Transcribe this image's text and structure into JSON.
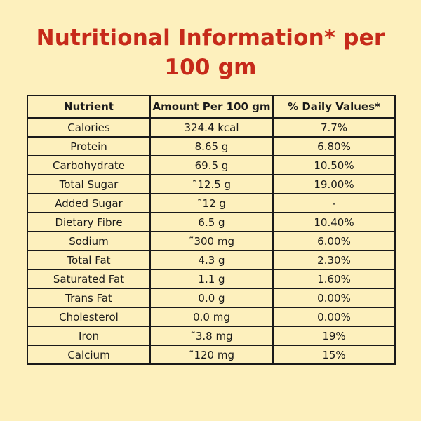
{
  "title": "Nutritional Information* per 100 gm",
  "table": {
    "headers": [
      "Nutrient",
      "Amount Per 100 gm",
      "% Daily Values*"
    ],
    "rows": [
      [
        "Calories",
        "324.4 kcal",
        "7.7%"
      ],
      [
        "Protein",
        "8.65 g",
        "6.80%"
      ],
      [
        "Carbohydrate",
        "69.5 g",
        "10.50%"
      ],
      [
        "Total Sugar",
        "˜12.5 g",
        "19.00%"
      ],
      [
        "Added Sugar",
        "˜12 g",
        "-"
      ],
      [
        "Dietary Fibre",
        "6.5 g",
        "10.40%"
      ],
      [
        "Sodium",
        "˜300 mg",
        "6.00%"
      ],
      [
        "Total Fat",
        "4.3 g",
        "2.30%"
      ],
      [
        "Saturated Fat",
        "1.1 g",
        "1.60%"
      ],
      [
        "Trans Fat",
        "0.0 g",
        "0.00%"
      ],
      [
        "Cholesterol",
        "0.0 mg",
        "0.00%"
      ],
      [
        "Iron",
        "˜3.8 mg",
        "19%"
      ],
      [
        "Calcium",
        "˜120 mg",
        "15%"
      ]
    ]
  },
  "colors": {
    "background": "#fdf0bd",
    "title": "#c62a1a",
    "border": "#1a1a1a",
    "text": "#1a1a1a"
  }
}
